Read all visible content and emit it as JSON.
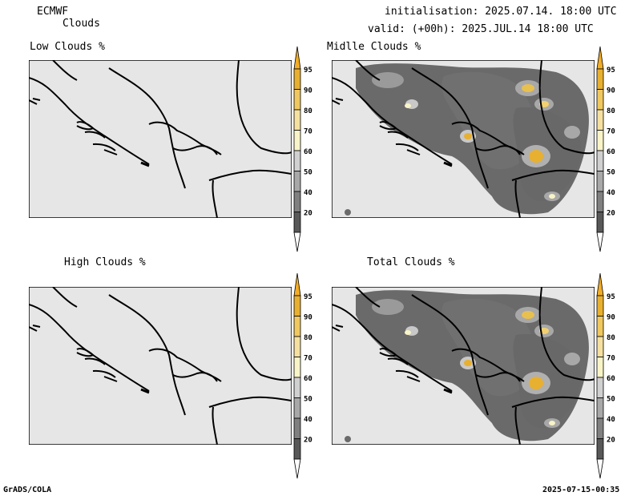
{
  "header": {
    "model": "ECMWF",
    "product": "Clouds",
    "init_line": "initialisation: 2025.07.14. 18:00 UTC",
    "valid_line": "valid: (+00h): 2025.JUL.14 18:00 UTC"
  },
  "panels": [
    {
      "title": "Low Clouds %"
    },
    {
      "title": "Midlle Clouds %"
    },
    {
      "title": "High Clouds %"
    },
    {
      "title": "Total Clouds %"
    }
  ],
  "colorbar": {
    "ticks": [
      "95",
      "90",
      "80",
      "70",
      "60",
      "50",
      "40",
      "20"
    ],
    "colors": [
      "#e8b030",
      "#f0c860",
      "#f5e0a0",
      "#f8f4c8",
      "#d0d0d0",
      "#a8a8a8",
      "#808080",
      "#585858"
    ],
    "top_color": "#f2ad27",
    "bottom_color": "#ffffff"
  },
  "footer": {
    "left": "GrADS/COLA",
    "right": "2025-07-15-00:35"
  }
}
